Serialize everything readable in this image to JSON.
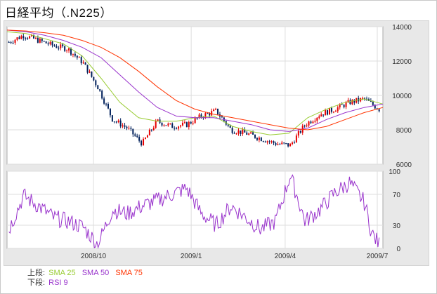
{
  "title": "日経平均（.N225）",
  "legend": {
    "upper_label": "上段:",
    "lower_label": "下段:",
    "upper_items": [
      {
        "text": "SMA 25",
        "color": "#99cc33"
      },
      {
        "text": "SMA 50",
        "color": "#9933cc"
      },
      {
        "text": "SMA 75",
        "color": "#ff3300"
      }
    ],
    "lower_items": [
      {
        "text": "RSI 9",
        "color": "#9933cc"
      }
    ]
  },
  "chart_data": {
    "type": "candlestick+line",
    "x_tick_labels": [
      "2008/10",
      "2009/1",
      "2009/4",
      "2009/7"
    ],
    "price_axis": {
      "ticks": [
        6000,
        8000,
        10000,
        12000,
        14000
      ],
      "range": [
        6000,
        14000
      ]
    },
    "rsi_axis": {
      "ticks": [
        0,
        30,
        70,
        100
      ],
      "range": [
        0,
        100
      ]
    },
    "colors": {
      "up": "#e60000",
      "down": "#00205b",
      "sma25": "#99cc33",
      "sma50": "#9933cc",
      "sma75": "#ff3300",
      "rsi": "#9933cc"
    },
    "price_series": {
      "close_t": [
        0,
        0.04,
        0.08,
        0.12,
        0.16,
        0.2,
        0.24,
        0.28,
        0.32,
        0.36,
        0.4,
        0.44,
        0.48,
        0.52,
        0.56,
        0.6,
        0.64,
        0.68,
        0.72,
        0.76,
        0.8,
        0.84,
        0.88,
        0.92,
        0.96,
        1.0
      ],
      "close_v": [
        13100,
        13500,
        13200,
        12900,
        12700,
        11900,
        10500,
        8600,
        8100,
        7200,
        8500,
        8200,
        8300,
        8800,
        9100,
        8000,
        7800,
        7500,
        7200,
        7100,
        8300,
        8900,
        9200,
        9600,
        9800,
        9200
      ]
    },
    "sma25": {
      "t": [
        0,
        0.05,
        0.1,
        0.15,
        0.2,
        0.25,
        0.3,
        0.35,
        0.4,
        0.45,
        0.5,
        0.55,
        0.6,
        0.65,
        0.7,
        0.75,
        0.8,
        0.85,
        0.9,
        0.95,
        1.0
      ],
      "v": [
        13700,
        13600,
        13300,
        13000,
        12300,
        11000,
        9600,
        8700,
        8500,
        8500,
        8700,
        8800,
        8200,
        7900,
        7700,
        7800,
        8700,
        9200,
        9600,
        9800,
        9500
      ]
    },
    "sma50": {
      "t": [
        0,
        0.05,
        0.1,
        0.15,
        0.2,
        0.25,
        0.3,
        0.35,
        0.4,
        0.45,
        0.5,
        0.55,
        0.6,
        0.65,
        0.7,
        0.75,
        0.8,
        0.85,
        0.9,
        0.95,
        1.0
      ],
      "v": [
        13800,
        13700,
        13500,
        13200,
        12800,
        12200,
        11200,
        10200,
        9300,
        8800,
        8700,
        8700,
        8500,
        8300,
        8000,
        7900,
        8100,
        8600,
        9000,
        9300,
        9500
      ]
    },
    "sma75": {
      "t": [
        0,
        0.05,
        0.1,
        0.15,
        0.2,
        0.25,
        0.3,
        0.35,
        0.4,
        0.45,
        0.5,
        0.55,
        0.6,
        0.65,
        0.7,
        0.75,
        0.8,
        0.85,
        0.9,
        0.95,
        1.0
      ],
      "v": [
        13800,
        13750,
        13650,
        13500,
        13200,
        12800,
        12200,
        11400,
        10500,
        9700,
        9200,
        8900,
        8700,
        8500,
        8300,
        8100,
        8000,
        8200,
        8600,
        9000,
        9300
      ]
    },
    "rsi": {
      "t": [
        0,
        0.04,
        0.08,
        0.12,
        0.16,
        0.2,
        0.24,
        0.28,
        0.32,
        0.36,
        0.4,
        0.44,
        0.48,
        0.52,
        0.56,
        0.6,
        0.64,
        0.68,
        0.72,
        0.76,
        0.8,
        0.84,
        0.88,
        0.92,
        0.96,
        0.98,
        1.0
      ],
      "v": [
        25,
        68,
        55,
        40,
        35,
        28,
        5,
        50,
        45,
        55,
        62,
        70,
        78,
        45,
        30,
        55,
        40,
        25,
        35,
        95,
        35,
        50,
        72,
        85,
        60,
        20,
        5
      ]
    }
  }
}
